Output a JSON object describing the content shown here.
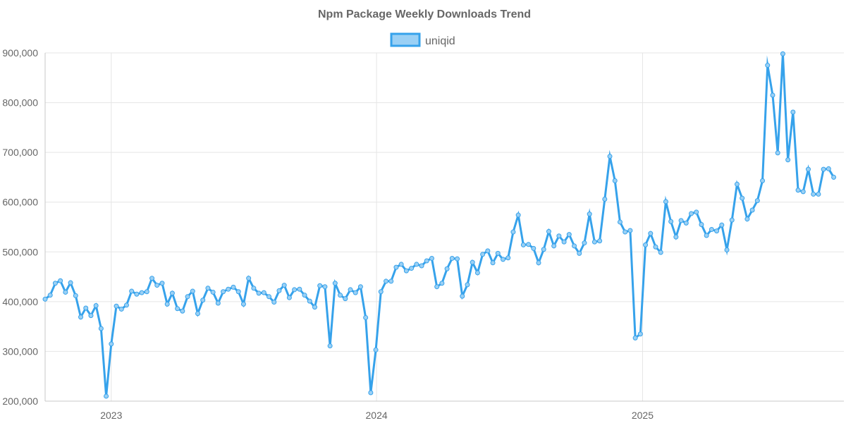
{
  "chart_data": {
    "type": "line",
    "title": "Npm Package Weekly Downloads Trend",
    "xlabel": "",
    "ylabel": "",
    "ylim": [
      200000,
      900000
    ],
    "yticks": [
      "200,000",
      "300,000",
      "400,000",
      "500,000",
      "600,000",
      "700,000",
      "800,000",
      "900,000"
    ],
    "ytick_values": [
      200000,
      300000,
      400000,
      500000,
      600000,
      700000,
      800000,
      900000
    ],
    "xlim": [
      "2022-10-02",
      "2025-10-05"
    ],
    "xticks": [
      "2023",
      "2024",
      "2025"
    ],
    "xtick_dates": [
      "2023-01-01",
      "2024-01-01",
      "2025-01-01"
    ],
    "grid": true,
    "legend_position": "top",
    "series": [
      {
        "name": "uniqid",
        "color": "#36a2eb",
        "fill_color": "#9ad0f5",
        "x_start": "2022-10-02",
        "x_step_days": 7,
        "values": [
          405000,
          413000,
          437000,
          442000,
          419000,
          438000,
          412000,
          369000,
          387000,
          372000,
          392000,
          346000,
          210000,
          315000,
          391000,
          385000,
          393000,
          421000,
          415000,
          418000,
          420000,
          447000,
          433000,
          437000,
          395000,
          417000,
          386000,
          381000,
          410000,
          421000,
          376000,
          403000,
          427000,
          419000,
          397000,
          420000,
          425000,
          429000,
          420000,
          395000,
          447000,
          427000,
          417000,
          418000,
          410000,
          399000,
          422000,
          433000,
          408000,
          424000,
          425000,
          413000,
          401000,
          389000,
          432000,
          430000,
          311000,
          437000,
          413000,
          406000,
          424000,
          418000,
          430000,
          368000,
          217000,
          303000,
          420000,
          441000,
          441000,
          469000,
          475000,
          462000,
          467000,
          475000,
          472000,
          482000,
          487000,
          430000,
          437000,
          466000,
          487000,
          486000,
          411000,
          434000,
          479000,
          458000,
          495000,
          502000,
          478000,
          497000,
          485000,
          488000,
          540000,
          574000,
          514000,
          515000,
          507000,
          478000,
          505000,
          541000,
          512000,
          532000,
          520000,
          535000,
          512000,
          497000,
          518000,
          576000,
          520000,
          522000,
          606000,
          692000,
          643000,
          560000,
          540000,
          543000,
          327000,
          335000,
          514000,
          537000,
          510000,
          499000,
          601000,
          561000,
          530000,
          563000,
          558000,
          577000,
          580000,
          555000,
          533000,
          545000,
          542000,
          554000,
          504000,
          564000,
          636000,
          608000,
          566000,
          584000,
          603000,
          643000,
          875000,
          815000,
          699000,
          898000,
          685000,
          781000,
          624000,
          621000,
          666000,
          616000,
          616000,
          666000,
          667000,
          650000
        ]
      }
    ]
  }
}
